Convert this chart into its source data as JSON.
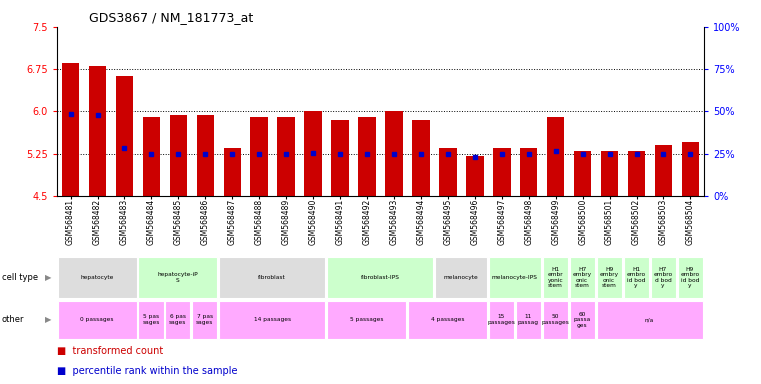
{
  "title": "GDS3867 / NM_181773_at",
  "samples": [
    "GSM568481",
    "GSM568482",
    "GSM568483",
    "GSM568484",
    "GSM568485",
    "GSM568486",
    "GSM568487",
    "GSM568488",
    "GSM568489",
    "GSM568490",
    "GSM568491",
    "GSM568492",
    "GSM568493",
    "GSM568494",
    "GSM568495",
    "GSM568496",
    "GSM568497",
    "GSM568498",
    "GSM568499",
    "GSM568500",
    "GSM568501",
    "GSM568502",
    "GSM568503",
    "GSM568504"
  ],
  "bar_values": [
    6.85,
    6.8,
    6.62,
    5.9,
    5.93,
    5.93,
    5.35,
    5.9,
    5.9,
    6.0,
    5.85,
    5.9,
    6.0,
    5.85,
    5.35,
    5.2,
    5.35,
    5.35,
    5.9,
    5.3,
    5.3,
    5.3,
    5.4,
    5.45
  ],
  "percentile_values": [
    5.95,
    5.93,
    5.35,
    5.25,
    5.25,
    5.25,
    5.25,
    5.25,
    5.25,
    5.26,
    5.25,
    5.25,
    5.25,
    5.25,
    5.25,
    5.19,
    5.25,
    5.25,
    5.3,
    5.25,
    5.25,
    5.25,
    5.25,
    5.25
  ],
  "ymin": 4.5,
  "ymax": 7.5,
  "yticks_left": [
    4.5,
    5.25,
    6.0,
    6.75,
    7.5
  ],
  "yticks_right_vals": [
    0,
    25,
    50,
    75,
    100
  ],
  "bar_color": "#cc0000",
  "dot_color": "#0000cc",
  "cell_types": [
    {
      "label": "hepatocyte",
      "start": 0,
      "end": 2,
      "color": "#dddddd"
    },
    {
      "label": "hepatocyte-iP\nS",
      "start": 3,
      "end": 5,
      "color": "#ccffcc"
    },
    {
      "label": "fibroblast",
      "start": 6,
      "end": 9,
      "color": "#dddddd"
    },
    {
      "label": "fibroblast-IPS",
      "start": 10,
      "end": 13,
      "color": "#ccffcc"
    },
    {
      "label": "melanocyte",
      "start": 14,
      "end": 15,
      "color": "#dddddd"
    },
    {
      "label": "melanocyte-IPS",
      "start": 16,
      "end": 17,
      "color": "#ccffcc"
    },
    {
      "label": "H1\nembr\nyonic\nstem",
      "start": 18,
      "end": 18,
      "color": "#ccffcc"
    },
    {
      "label": "H7\nembry\nonic\nstem",
      "start": 19,
      "end": 19,
      "color": "#ccffcc"
    },
    {
      "label": "H9\nembry\nonic\nstem",
      "start": 20,
      "end": 20,
      "color": "#ccffcc"
    },
    {
      "label": "H1\nembro\nid bod\ny",
      "start": 21,
      "end": 21,
      "color": "#ccffcc"
    },
    {
      "label": "H7\nembro\nd bod\ny",
      "start": 22,
      "end": 22,
      "color": "#ccffcc"
    },
    {
      "label": "H9\nembro\nid bod\ny",
      "start": 23,
      "end": 23,
      "color": "#ccffcc"
    }
  ],
  "other_info": [
    {
      "label": "0 passages",
      "start": 0,
      "end": 2,
      "color": "#ffaaff"
    },
    {
      "label": "5 pas\nsages",
      "start": 3,
      "end": 3,
      "color": "#ffaaff"
    },
    {
      "label": "6 pas\nsages",
      "start": 4,
      "end": 4,
      "color": "#ffaaff"
    },
    {
      "label": "7 pas\nsages",
      "start": 5,
      "end": 5,
      "color": "#ffaaff"
    },
    {
      "label": "14 passages",
      "start": 6,
      "end": 9,
      "color": "#ffaaff"
    },
    {
      "label": "5 passages",
      "start": 10,
      "end": 12,
      "color": "#ffaaff"
    },
    {
      "label": "4 passages",
      "start": 13,
      "end": 15,
      "color": "#ffaaff"
    },
    {
      "label": "15\npassages",
      "start": 16,
      "end": 16,
      "color": "#ffaaff"
    },
    {
      "label": "11\npassag",
      "start": 17,
      "end": 17,
      "color": "#ffaaff"
    },
    {
      "label": "50\npassages",
      "start": 18,
      "end": 18,
      "color": "#ffaaff"
    },
    {
      "label": "60\npassa\nges",
      "start": 19,
      "end": 19,
      "color": "#ffaaff"
    },
    {
      "label": "n/a",
      "start": 20,
      "end": 23,
      "color": "#ffaaff"
    }
  ]
}
